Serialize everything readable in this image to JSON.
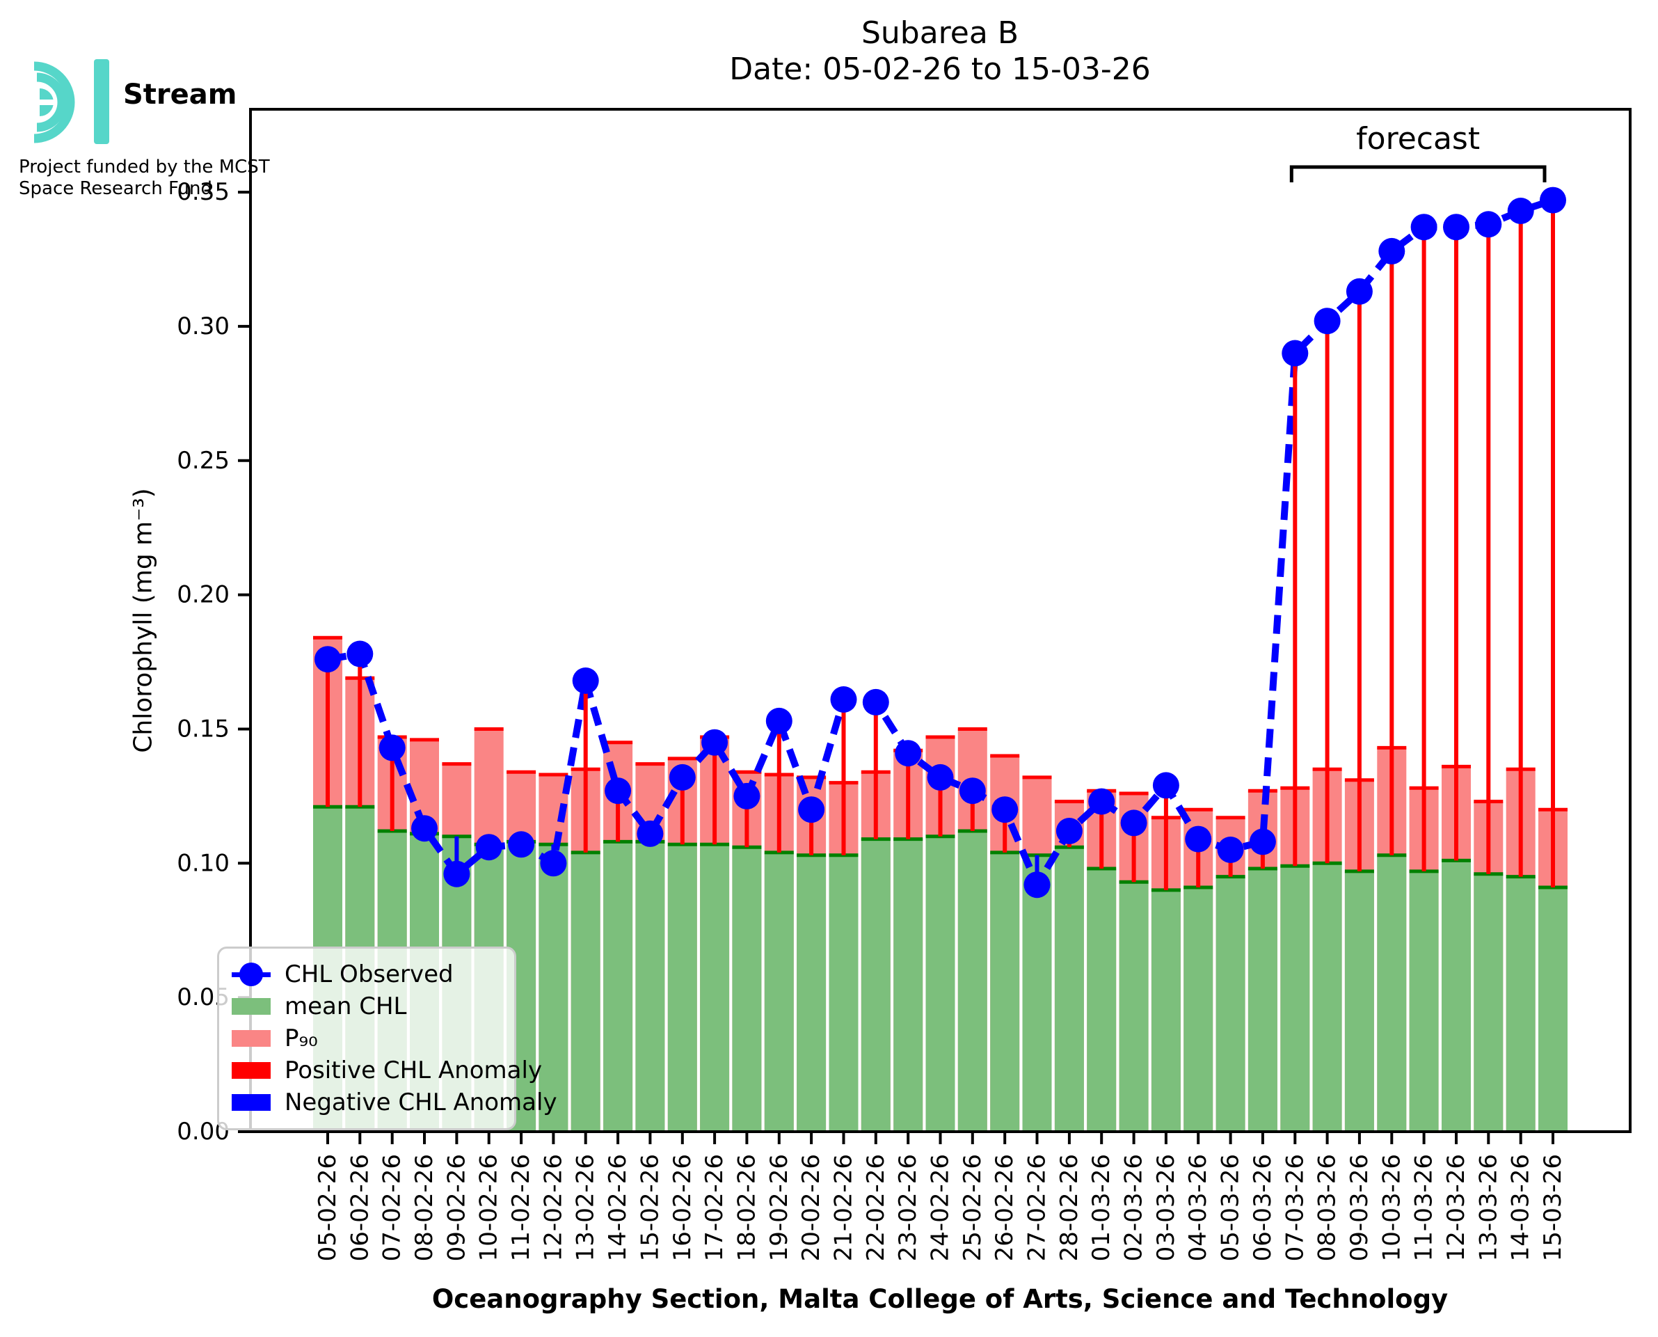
{
  "logo": {
    "brand": "Stream",
    "funding_line1": "Project funded by the MCST",
    "funding_line2": "Space Research Fund",
    "accent_color": "#56d6c9"
  },
  "header": {
    "title": "Subarea B",
    "subtitle": "Date: 05-02-26 to 15-03-26"
  },
  "chart_data": {
    "type": "bar",
    "title": "Subarea B",
    "subtitle": "Date: 05-02-26 to 15-03-26",
    "xlabel": "Oceanography Section, Malta College of Arts, Science and Technology",
    "ylabel": "Chlorophyll (mg m⁻³)",
    "ylim": [
      0,
      0.38
    ],
    "yticks": [
      0.0,
      0.05,
      0.1,
      0.15,
      0.2,
      0.25,
      0.3,
      0.35
    ],
    "grid": false,
    "legend_position": "lower left",
    "categories": [
      "05-02-26",
      "06-02-26",
      "07-02-26",
      "08-02-26",
      "09-02-26",
      "10-02-26",
      "11-02-26",
      "12-02-26",
      "13-02-26",
      "14-02-26",
      "15-02-26",
      "16-02-26",
      "17-02-26",
      "18-02-26",
      "19-02-26",
      "20-02-26",
      "21-02-26",
      "22-02-26",
      "23-02-26",
      "24-02-26",
      "25-02-26",
      "26-02-26",
      "27-02-26",
      "28-02-26",
      "01-03-26",
      "02-03-26",
      "03-03-26",
      "04-03-26",
      "05-03-26",
      "06-03-26",
      "07-03-26",
      "08-03-26",
      "09-03-26",
      "10-03-26",
      "11-03-26",
      "12-03-26",
      "13-03-26",
      "14-03-26",
      "15-03-26"
    ],
    "series": [
      {
        "name": "mean CHL",
        "type": "bar",
        "values": [
          0.121,
          0.121,
          0.112,
          0.111,
          0.11,
          0.107,
          0.108,
          0.107,
          0.104,
          0.108,
          0.108,
          0.107,
          0.107,
          0.106,
          0.104,
          0.103,
          0.103,
          0.109,
          0.109,
          0.11,
          0.112,
          0.104,
          0.103,
          0.106,
          0.098,
          0.093,
          0.09,
          0.091,
          0.095,
          0.098,
          0.099,
          0.1,
          0.097,
          0.103,
          0.097,
          0.101,
          0.096,
          0.095,
          0.091
        ]
      },
      {
        "name": "P₉₀",
        "type": "bar",
        "values": [
          0.184,
          0.169,
          0.147,
          0.146,
          0.137,
          0.15,
          0.134,
          0.133,
          0.135,
          0.145,
          0.137,
          0.139,
          0.147,
          0.134,
          0.133,
          0.132,
          0.13,
          0.134,
          0.142,
          0.147,
          0.15,
          0.14,
          0.132,
          0.123,
          0.127,
          0.126,
          0.117,
          0.12,
          0.117,
          0.127,
          0.128,
          0.135,
          0.131,
          0.143,
          0.128,
          0.136,
          0.123,
          0.135,
          0.12
        ]
      },
      {
        "name": "CHL Observed",
        "type": "line",
        "values": [
          0.176,
          0.178,
          0.143,
          0.113,
          0.096,
          0.106,
          0.107,
          0.1,
          0.168,
          0.127,
          0.111,
          0.132,
          0.145,
          0.125,
          0.153,
          0.12,
          0.161,
          0.16,
          0.141,
          0.132,
          0.127,
          0.12,
          0.092,
          0.112,
          0.123,
          0.115,
          0.129,
          0.109,
          0.105,
          0.108,
          0.29,
          0.302,
          0.313,
          0.328,
          0.337,
          0.337,
          0.338,
          0.343,
          0.347
        ]
      }
    ],
    "anomaly_rule": "red stem where observed > mean, blue stem where observed < mean",
    "annotations": {
      "forecast": {
        "label": "forecast",
        "start_index": 30,
        "end_index": 38
      }
    },
    "colors": {
      "mean_fill": "#7cbf7c",
      "mean_edge": "#008000",
      "p90_fill": "#fa8585",
      "p90_edge": "#ff0000",
      "observed": "#0000ff",
      "positive_anomaly": "#ff0000",
      "negative_anomaly": "#0000ff",
      "axis": "#000000"
    },
    "legend": {
      "items": [
        {
          "label": "CHL Observed"
        },
        {
          "label": "mean CHL"
        },
        {
          "label": "P₉₀"
        },
        {
          "label": "Positive CHL Anomaly"
        },
        {
          "label": "Negative CHL Anomaly"
        }
      ]
    }
  }
}
